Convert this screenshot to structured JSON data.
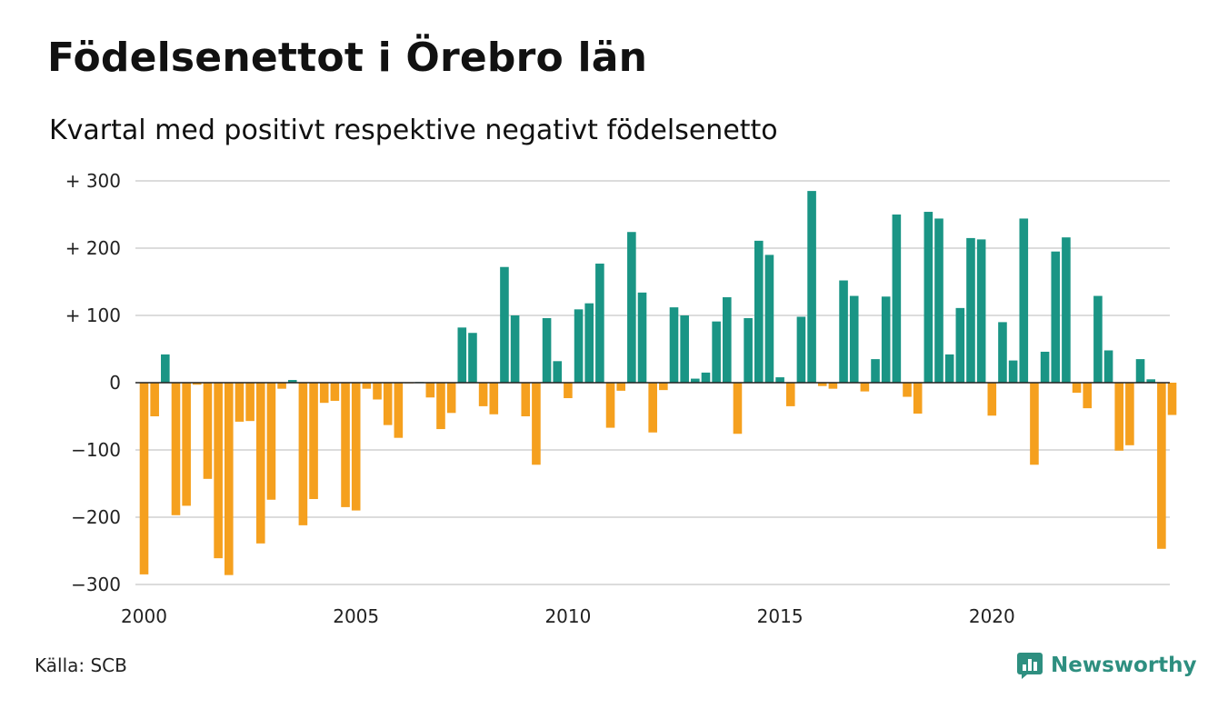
{
  "title": "Födelsenettot i Örebro län",
  "subtitle": "Kvartal med positivt respektive negativt födelsenetto",
  "source": "Källa: SCB",
  "brand": "Newsworthy",
  "colors": {
    "positive": "#1a9585",
    "negative": "#f5a01e",
    "grid": "#dcdcdc",
    "axis": "#222222",
    "brand": "#2e8f80"
  },
  "chart_data": {
    "type": "bar",
    "title": "Födelsenettot i Örebro län",
    "subtitle": "Kvartal med positivt respektive negativt födelsenetto",
    "xlabel": "",
    "ylabel": "",
    "ylim": [
      -300,
      300
    ],
    "grid": true,
    "legend": "none",
    "y_ticks": [
      {
        "value": 300,
        "label": "+ 300"
      },
      {
        "value": 200,
        "label": "+ 200"
      },
      {
        "value": 100,
        "label": "+ 100"
      },
      {
        "value": 0,
        "label": "0"
      },
      {
        "value": -100,
        "label": "−100"
      },
      {
        "value": -200,
        "label": "−200"
      },
      {
        "value": -300,
        "label": "−300"
      }
    ],
    "x_ticks": [
      "2000",
      "2005",
      "2010",
      "2015",
      "2020"
    ],
    "start_year": 2000,
    "values": [
      -285,
      -50,
      42,
      -197,
      -183,
      -3,
      -143,
      -261,
      -286,
      -58,
      -57,
      -239,
      -174,
      -9,
      4,
      -212,
      -173,
      -30,
      -27,
      -185,
      -190,
      -9,
      -25,
      -63,
      -82,
      -1,
      1,
      -22,
      -69,
      -45,
      82,
      74,
      -35,
      -47,
      172,
      100,
      -50,
      -122,
      96,
      32,
      -23,
      109,
      118,
      177,
      -67,
      -12,
      224,
      134,
      -74,
      -11,
      112,
      100,
      6,
      15,
      91,
      127,
      -76,
      96,
      211,
      190,
      8,
      -35,
      98,
      285,
      -5,
      -9,
      152,
      129,
      -13,
      35,
      128,
      250,
      -21,
      -46,
      254,
      244,
      42,
      111,
      215,
      213,
      -49,
      90,
      33,
      244,
      -122,
      46,
      195,
      216,
      -15,
      -38,
      129,
      48,
      -101,
      -93,
      35,
      5,
      -247,
      -48
    ]
  }
}
